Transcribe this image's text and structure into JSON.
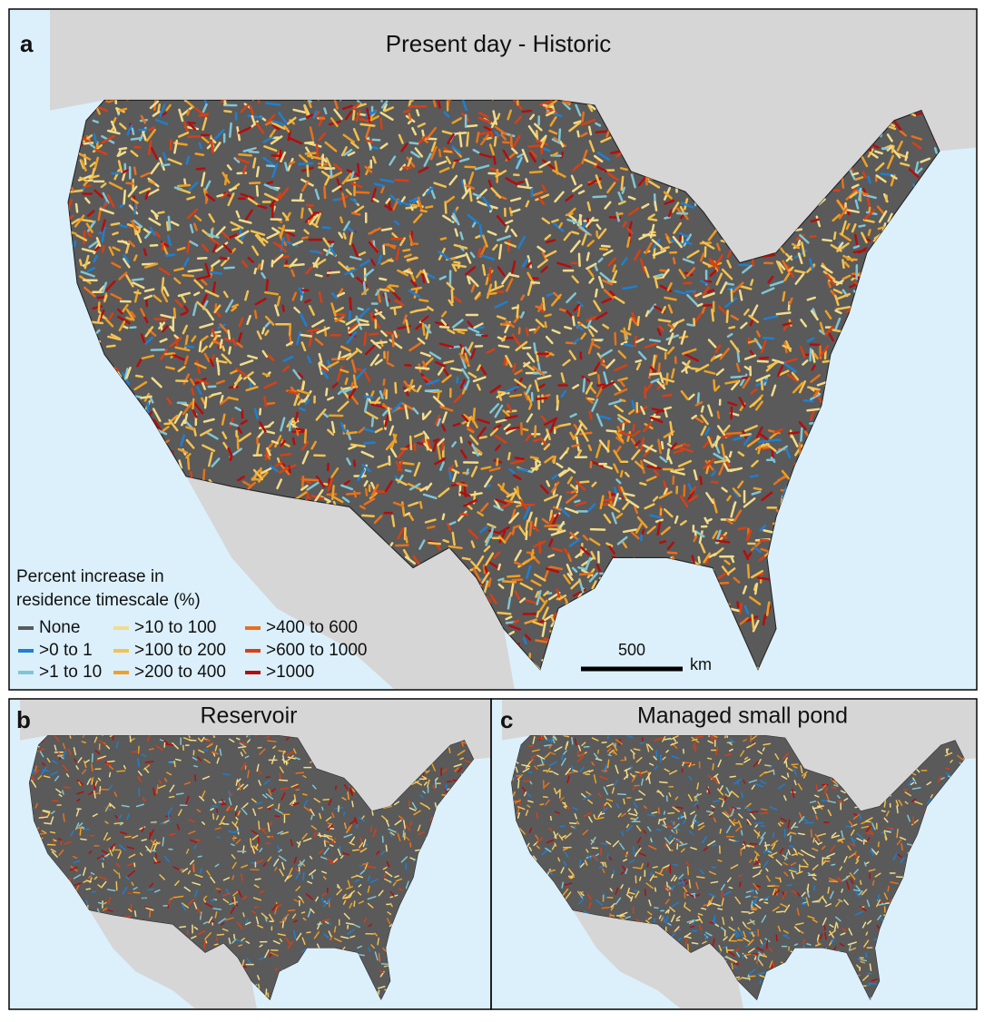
{
  "panels": [
    {
      "letter": "a",
      "title": "Present day - Historic"
    },
    {
      "letter": "b",
      "title": "Reservoir"
    },
    {
      "letter": "c",
      "title": "Managed small pond"
    }
  ],
  "legend": {
    "title_lines": [
      "Percent increase in",
      "residence timescale (%)"
    ],
    "items": [
      {
        "label": "None",
        "color": "#5a5a5a"
      },
      {
        "label": ">0 to 1",
        "color": "#1f7fd0"
      },
      {
        "label": ">1 to 10",
        "color": "#7fc6d6"
      },
      {
        "label": ">10 to 100",
        "color": "#f3dc8a"
      },
      {
        "label": ">100 to 200",
        "color": "#f4c24e"
      },
      {
        "label": ">200 to 400",
        "color": "#f0a024"
      },
      {
        "label": ">400 to 600",
        "color": "#e8701a"
      },
      {
        "label": ">600 to 1000",
        "color": "#d84014"
      },
      {
        "label": ">1000",
        "color": "#b50d0d"
      }
    ]
  },
  "scale_bar": {
    "value": "500",
    "unit": "km"
  }
}
